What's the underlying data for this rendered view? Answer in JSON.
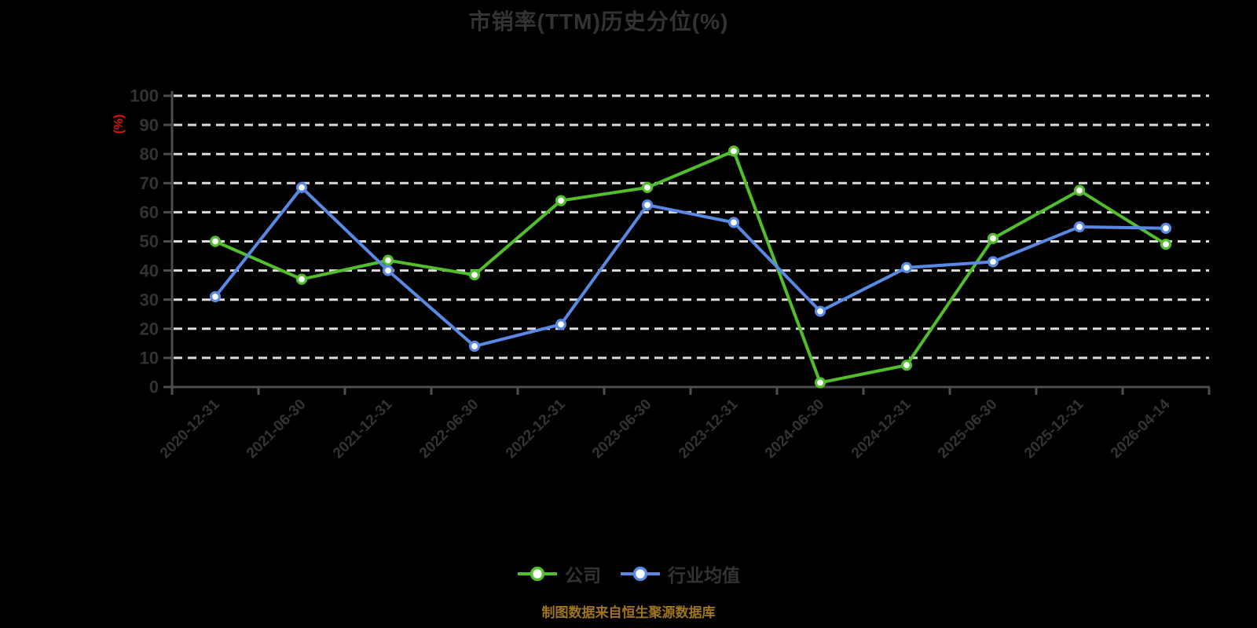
{
  "title": "市销率(TTM)历史分位(%)",
  "footer": "制图数据来自恒生聚源数据库",
  "legend": [
    {
      "label": "公司",
      "color": "#52BE2B"
    },
    {
      "label": "行业均值",
      "color": "#5989E4"
    }
  ],
  "colors": {
    "background": "#000000",
    "text": "#333333",
    "axis_line": "#4D4D4D",
    "gridline": "#DCDCDC",
    "axis_name_red": "#E21212",
    "footer_gold": "#A1761B",
    "marker_fill": "#FFFFFF",
    "series_company_green": "#52BE2B",
    "series_industry_blue": "#5989E4"
  },
  "chart_data": {
    "type": "line",
    "title": "市销率(TTM)历史分位(%)",
    "ylabel": "(%)",
    "xlabel": "",
    "ylim": [
      0,
      100
    ],
    "y_ticks": [
      0,
      10,
      20,
      30,
      40,
      50,
      60,
      70,
      80,
      90,
      100
    ],
    "grid": "horizontal dashed",
    "legend_position": "bottom",
    "categories": [
      "2020-12-31",
      "2021-06-30",
      "2021-12-31",
      "2022-06-30",
      "2022-12-31",
      "2023-06-30",
      "2023-12-31",
      "2024-06-30",
      "2024-12-31",
      "2025-06-30",
      "2025-12-31",
      "2026-04-14"
    ],
    "series": [
      {
        "name": "公司",
        "color": "#52BE2B",
        "values": [
          50,
          37,
          43.5,
          38.5,
          64,
          68.5,
          81,
          1.5,
          7.5,
          51,
          67.5,
          49
        ]
      },
      {
        "name": "行业均值",
        "color": "#5989E4",
        "values": [
          31,
          68.5,
          40,
          14,
          21.5,
          62.5,
          56.5,
          26,
          41,
          43,
          55,
          54.5
        ]
      }
    ]
  }
}
